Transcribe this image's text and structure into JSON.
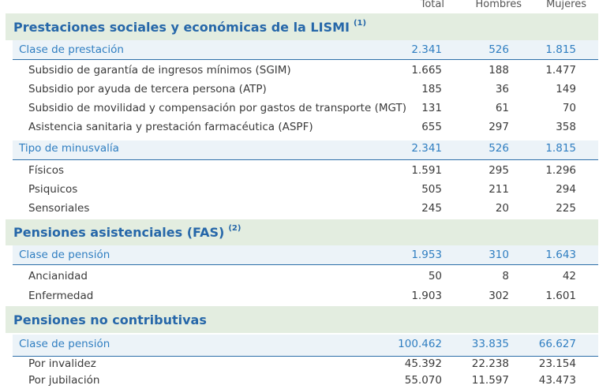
{
  "header": {
    "total": "Total",
    "hombres": "Hombres",
    "mujeres": "Mujeres"
  },
  "sections": [
    {
      "title": "Prestaciones sociales y económicas de la LISMI",
      "note": "(1)",
      "groups": [
        {
          "label": "Clase de prestación",
          "total": "2.341",
          "hombres": "526",
          "mujeres": "1.815",
          "rows": [
            {
              "label": "Subsidio de garantía de ingresos mínimos (SGIM)",
              "total": "1.665",
              "hombres": "188",
              "mujeres": "1.477"
            },
            {
              "label": "Subsidio por ayuda de tercera persona (ATP)",
              "total": "185",
              "hombres": "36",
              "mujeres": "149"
            },
            {
              "label": "Subsidio de movilidad y compensación por gastos de transporte (MGT)",
              "total": "131",
              "hombres": "61",
              "mujeres": "70"
            },
            {
              "label": "Asistencia sanitaria y prestación farmacéutica (ASPF)",
              "total": "655",
              "hombres": "297",
              "mujeres": "358"
            }
          ]
        },
        {
          "label": "Tipo de minusvalía",
          "total": "2.341",
          "hombres": "526",
          "mujeres": "1.815",
          "rows": [
            {
              "label": "Físicos",
              "total": "1.591",
              "hombres": "295",
              "mujeres": "1.296"
            },
            {
              "label": "Psiquicos",
              "total": "505",
              "hombres": "211",
              "mujeres": "294"
            },
            {
              "label": "Sensoriales",
              "total": "245",
              "hombres": "20",
              "mujeres": "225"
            }
          ]
        }
      ]
    },
    {
      "title": "Pensiones asistenciales (FAS)",
      "note": "(2)",
      "groups": [
        {
          "label": "Clase de pensión",
          "total": "1.953",
          "hombres": "310",
          "mujeres": "1.643",
          "rows": [
            {
              "label": "Ancianidad",
              "total": "50",
              "hombres": "8",
              "mujeres": "42"
            },
            {
              "label": "Enfermedad",
              "total": "1.903",
              "hombres": "302",
              "mujeres": "1.601"
            }
          ]
        }
      ]
    },
    {
      "title": "Pensiones no contributivas",
      "note": "",
      "groups": [
        {
          "label": "Clase de pensión",
          "total": "100.462",
          "hombres": "33.835",
          "mujeres": "66.627",
          "rows": [
            {
              "label": "Por invalidez",
              "total": "45.392",
              "hombres": "22.238",
              "mujeres": "23.154"
            },
            {
              "label": "Por jubilación",
              "total": "55.070",
              "hombres": "11.597",
              "mujeres": "43.473"
            }
          ]
        }
      ]
    }
  ]
}
